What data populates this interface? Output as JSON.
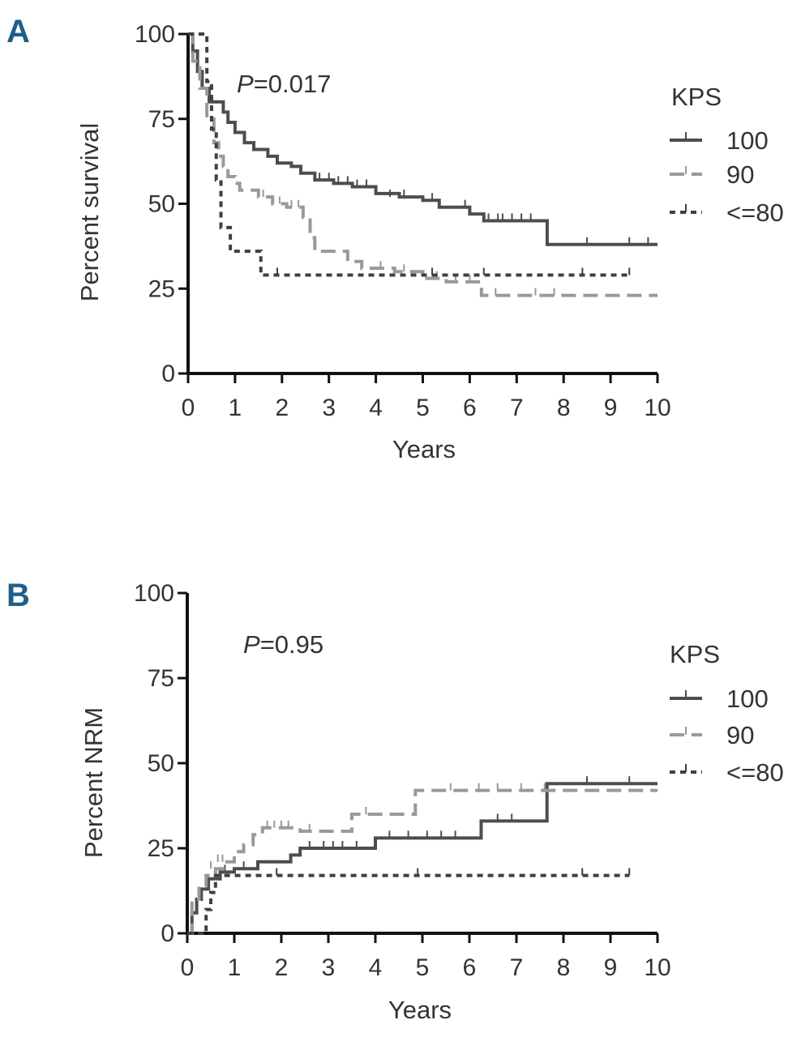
{
  "chart_data": [
    {
      "panel": "A",
      "type": "line",
      "title": "",
      "p_value_prefix": "P",
      "p_value_text": "=0.017",
      "xlabel": "Years",
      "ylabel": "Percent survival",
      "xlim": [
        0,
        10
      ],
      "ylim": [
        0,
        100
      ],
      "xticks": [
        "0",
        "1",
        "2",
        "3",
        "4",
        "5",
        "6",
        "7",
        "8",
        "9",
        "10"
      ],
      "yticks": [
        "0",
        "25",
        "50",
        "75",
        "100"
      ],
      "legend_title": "KPS",
      "legend_position": "right",
      "series": [
        {
          "name": "100",
          "color": "#4d4d4d",
          "dash": "solid",
          "steps": [
            [
              0,
              100
            ],
            [
              0.1,
              95
            ],
            [
              0.2,
              89
            ],
            [
              0.3,
              84
            ],
            [
              0.45,
              80
            ],
            [
              0.75,
              77
            ],
            [
              0.85,
              74
            ],
            [
              1.0,
              71
            ],
            [
              1.2,
              68
            ],
            [
              1.4,
              66
            ],
            [
              1.7,
              64
            ],
            [
              1.9,
              62
            ],
            [
              2.2,
              61
            ],
            [
              2.4,
              59
            ],
            [
              2.7,
              57
            ],
            [
              3.1,
              56
            ],
            [
              3.5,
              55
            ],
            [
              4.0,
              53
            ],
            [
              4.5,
              52
            ],
            [
              5.0,
              51
            ],
            [
              5.35,
              49
            ],
            [
              6.0,
              47
            ],
            [
              6.3,
              45
            ],
            [
              7.65,
              38
            ],
            [
              10,
              38
            ]
          ],
          "censors": [
            [
              2.8,
              57
            ],
            [
              3.0,
              57
            ],
            [
              3.2,
              56
            ],
            [
              3.4,
              56
            ],
            [
              3.6,
              55
            ],
            [
              3.8,
              55
            ],
            [
              4.3,
              52
            ],
            [
              4.6,
              52
            ],
            [
              5.2,
              51
            ],
            [
              5.9,
              49
            ],
            [
              6.4,
              45
            ],
            [
              6.6,
              45
            ],
            [
              6.7,
              45
            ],
            [
              6.9,
              45
            ],
            [
              7.1,
              45
            ],
            [
              7.3,
              45
            ],
            [
              8.5,
              38
            ],
            [
              9.4,
              38
            ],
            [
              9.8,
              38
            ]
          ]
        },
        {
          "name": "90",
          "color": "#999999",
          "dash": "long-dash",
          "steps": [
            [
              0,
              100
            ],
            [
              0.1,
              92
            ],
            [
              0.25,
              84
            ],
            [
              0.4,
              75
            ],
            [
              0.55,
              68
            ],
            [
              0.65,
              64
            ],
            [
              0.75,
              61
            ],
            [
              0.85,
              58
            ],
            [
              1.0,
              56
            ],
            [
              1.1,
              54
            ],
            [
              1.5,
              52
            ],
            [
              1.8,
              50
            ],
            [
              2.1,
              49
            ],
            [
              2.45,
              46
            ],
            [
              2.6,
              40
            ],
            [
              2.7,
              36
            ],
            [
              3.4,
              33
            ],
            [
              3.7,
              31
            ],
            [
              4.4,
              30
            ],
            [
              5.0,
              28
            ],
            [
              5.5,
              27
            ],
            [
              6.25,
              23
            ],
            [
              10,
              23
            ]
          ],
          "censors": [
            [
              1.6,
              52
            ],
            [
              1.95,
              50
            ],
            [
              2.2,
              49
            ],
            [
              2.35,
              49
            ],
            [
              4.1,
              31
            ],
            [
              4.6,
              30
            ],
            [
              5.3,
              28
            ],
            [
              5.7,
              27
            ],
            [
              6.0,
              27
            ],
            [
              6.55,
              23
            ],
            [
              7.4,
              23
            ],
            [
              7.8,
              23
            ]
          ]
        },
        {
          "name": "<=80",
          "color": "#404040",
          "dash": "short-dash",
          "steps": [
            [
              0,
              100
            ],
            [
              0.3,
              100
            ],
            [
              0.4,
              86
            ],
            [
              0.5,
              72
            ],
            [
              0.6,
              57
            ],
            [
              0.7,
              43
            ],
            [
              0.9,
              36
            ],
            [
              1.55,
              29
            ],
            [
              9.4,
              29
            ]
          ],
          "censors": [
            [
              1.9,
              29
            ],
            [
              5.2,
              29
            ],
            [
              6.3,
              29
            ],
            [
              8.4,
              29
            ],
            [
              9.4,
              29
            ]
          ]
        }
      ]
    },
    {
      "panel": "B",
      "type": "line",
      "title": "",
      "p_value_prefix": "P",
      "p_value_text": "=0.95",
      "xlabel": "Years",
      "ylabel": "Percent NRM",
      "xlim": [
        0,
        10
      ],
      "ylim": [
        0,
        100
      ],
      "xticks": [
        "0",
        "1",
        "2",
        "3",
        "4",
        "5",
        "6",
        "7",
        "8",
        "9",
        "10"
      ],
      "yticks": [
        "0",
        "25",
        "50",
        "75",
        "100"
      ],
      "legend_title": "KPS",
      "legend_position": "right",
      "series": [
        {
          "name": "100",
          "color": "#4d4d4d",
          "dash": "solid",
          "steps": [
            [
              0,
              0
            ],
            [
              0.1,
              6
            ],
            [
              0.2,
              10
            ],
            [
              0.3,
              13
            ],
            [
              0.45,
              16
            ],
            [
              0.7,
              18
            ],
            [
              1.0,
              19
            ],
            [
              1.5,
              21
            ],
            [
              2.2,
              23
            ],
            [
              2.4,
              25
            ],
            [
              4.0,
              28
            ],
            [
              6.25,
              33
            ],
            [
              7.65,
              44
            ],
            [
              10,
              44
            ]
          ],
          "censors": [
            [
              0.8,
              18
            ],
            [
              1.2,
              19
            ],
            [
              2.6,
              25
            ],
            [
              2.9,
              25
            ],
            [
              3.1,
              25
            ],
            [
              3.3,
              25
            ],
            [
              3.6,
              25
            ],
            [
              4.3,
              28
            ],
            [
              4.7,
              28
            ],
            [
              5.1,
              28
            ],
            [
              5.4,
              28
            ],
            [
              5.7,
              28
            ],
            [
              6.6,
              33
            ],
            [
              6.9,
              33
            ],
            [
              8.5,
              44
            ],
            [
              9.4,
              44
            ]
          ]
        },
        {
          "name": "90",
          "color": "#999999",
          "dash": "long-dash",
          "steps": [
            [
              0,
              0
            ],
            [
              0.1,
              10
            ],
            [
              0.25,
              14
            ],
            [
              0.4,
              17
            ],
            [
              0.6,
              19
            ],
            [
              0.8,
              21
            ],
            [
              1.0,
              24
            ],
            [
              1.2,
              26
            ],
            [
              1.4,
              29
            ],
            [
              1.6,
              31
            ],
            [
              2.4,
              30
            ],
            [
              3.5,
              35
            ],
            [
              4.85,
              42
            ],
            [
              10,
              42
            ]
          ],
          "censors": [
            [
              0.5,
              19
            ],
            [
              0.65,
              21
            ],
            [
              0.75,
              21
            ],
            [
              1.7,
              31
            ],
            [
              1.85,
              31
            ],
            [
              2.0,
              31
            ],
            [
              2.15,
              31
            ],
            [
              2.6,
              30
            ],
            [
              3.8,
              35
            ],
            [
              5.6,
              42
            ],
            [
              6.2,
              42
            ],
            [
              6.6,
              42
            ],
            [
              7.1,
              42
            ],
            [
              7.6,
              42
            ]
          ]
        },
        {
          "name": "<=80",
          "color": "#404040",
          "dash": "short-dash",
          "steps": [
            [
              0,
              0
            ],
            [
              0.3,
              0
            ],
            [
              0.4,
              7
            ],
            [
              0.5,
              12
            ],
            [
              0.6,
              17
            ],
            [
              9.4,
              17
            ]
          ],
          "censors": [
            [
              1.9,
              17
            ],
            [
              4.9,
              17
            ],
            [
              8.4,
              17
            ],
            [
              9.4,
              17
            ]
          ]
        }
      ]
    }
  ]
}
